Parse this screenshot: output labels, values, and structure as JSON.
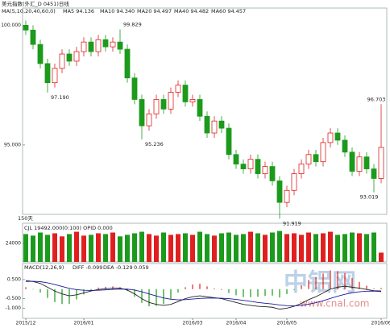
{
  "chart_data": [
    {
      "type": "candlestick",
      "title": "美元指数(外汇_D 0451)日线",
      "ma_title": "MA(5,10,20,40,60,0)",
      "legend": [
        {
          "label": "MA5 94.136",
          "color": "#000000"
        },
        {
          "label": "MA10 94.340",
          "color": "#1a1a9a"
        },
        {
          "label": "MA20 94.497",
          "color": "#c000c0"
        },
        {
          "label": "MA40 94.482",
          "color": "#008000"
        },
        {
          "label": "MA60 94.457",
          "color": "#808040"
        }
      ],
      "footer": "150天",
      "categories": [
        "2015/12",
        null,
        null,
        null,
        null,
        null,
        null,
        null,
        "2016/01",
        null,
        null,
        null,
        null,
        null,
        null,
        null,
        null,
        null,
        null,
        null,
        null,
        null,
        null,
        "2016/03",
        null,
        null,
        null,
        null,
        null,
        "2016/04",
        null,
        null,
        null,
        null,
        null,
        null,
        "2016/05",
        null,
        null,
        null,
        null,
        null,
        null,
        null,
        null,
        null,
        null,
        null,
        null,
        "2016/06"
      ],
      "open": [
        100.0,
        99.8,
        99.2,
        98.4,
        97.6,
        98.2,
        98.8,
        98.5,
        98.9,
        99.3,
        98.9,
        99.4,
        99.1,
        99.3,
        99.0,
        97.8,
        96.9,
        95.8,
        96.3,
        96.9,
        96.5,
        97.2,
        97.5,
        96.8,
        96.9,
        96.2,
        95.5,
        96.0,
        95.7,
        94.6,
        94.2,
        94.0,
        94.4,
        93.8,
        94.1,
        93.5,
        92.6,
        93.1,
        93.8,
        94.2,
        94.6,
        94.3,
        95.1,
        95.5,
        95.2,
        94.7,
        93.9,
        94.5,
        94.0,
        93.6
      ],
      "high": [
        100.2,
        100.0,
        99.4,
        98.6,
        98.4,
        99.0,
        99.0,
        99.1,
        99.5,
        99.5,
        99.6,
        99.6,
        99.5,
        99.829,
        99.2,
        98.0,
        97.1,
        96.5,
        97.1,
        97.1,
        97.4,
        97.7,
        97.7,
        97.1,
        97.1,
        96.4,
        96.2,
        96.2,
        95.9,
        94.8,
        94.4,
        94.6,
        94.6,
        94.3,
        94.3,
        93.7,
        93.3,
        94.0,
        94.4,
        94.8,
        94.8,
        95.3,
        95.7,
        95.7,
        95.4,
        94.9,
        94.7,
        94.7,
        94.2,
        96.703
      ],
      "low": [
        99.6,
        99.0,
        98.2,
        97.19,
        97.4,
        98.0,
        98.3,
        98.3,
        98.7,
        98.7,
        98.7,
        98.9,
        98.9,
        98.8,
        97.6,
        96.7,
        95.236,
        95.6,
        96.1,
        96.3,
        96.3,
        97.0,
        96.6,
        96.6,
        96.0,
        95.3,
        95.3,
        95.5,
        94.4,
        94.0,
        93.8,
        93.8,
        93.6,
        93.6,
        93.3,
        91.919,
        92.4,
        92.9,
        93.6,
        94.0,
        94.1,
        94.1,
        94.9,
        95.0,
        94.5,
        93.7,
        93.7,
        93.8,
        93.019,
        93.4
      ],
      "close": [
        99.8,
        99.2,
        98.4,
        97.6,
        98.2,
        98.8,
        98.5,
        98.9,
        99.3,
        98.9,
        99.4,
        99.1,
        99.3,
        99.0,
        97.8,
        96.9,
        95.8,
        96.3,
        96.9,
        96.5,
        97.2,
        97.5,
        96.8,
        96.9,
        96.2,
        95.5,
        96.0,
        95.7,
        94.6,
        94.2,
        94.0,
        94.4,
        93.8,
        94.1,
        93.5,
        92.6,
        93.1,
        93.8,
        94.2,
        94.6,
        94.3,
        95.1,
        95.5,
        95.2,
        94.7,
        93.9,
        94.5,
        94.0,
        93.6,
        94.9
      ],
      "annotations": [
        {
          "index": 13,
          "value": 99.829,
          "label": "99.829",
          "color": "#c03030"
        },
        {
          "index": 3,
          "value": 97.19,
          "label": "97.190",
          "color": "#208020"
        },
        {
          "index": 16,
          "value": 95.236,
          "label": "95.236",
          "color": "#208020"
        },
        {
          "index": 35,
          "value": 91.919,
          "label": "91.919",
          "color": "#208020"
        },
        {
          "index": 49,
          "value": 96.703,
          "label": "96.703",
          "color": "#c03030"
        },
        {
          "index": 48,
          "value": 93.019,
          "label": "93.019",
          "color": "#208020"
        }
      ],
      "up_color": "#e02020",
      "down_color": "#1c9a1c",
      "ylim": [
        92.1,
        100.72
      ],
      "yticks": [
        {
          "value": 100,
          "label": "100.000"
        },
        {
          "value": 95,
          "label": "95.000"
        }
      ]
    },
    {
      "type": "bar",
      "title": "CJL 19492.000(0:100)  OPID 0.000",
      "values": [
        36000,
        34000,
        38000,
        35000,
        37000,
        33000,
        36000,
        39000,
        34000,
        35000,
        37000,
        36000,
        38000,
        33000,
        35000,
        37000,
        39000,
        36000,
        34000,
        38000,
        35000,
        36000,
        37000,
        35000,
        39000,
        36000,
        34000,
        37000,
        38000,
        35000,
        36000,
        39000,
        37000,
        35000,
        38000,
        40000,
        36000,
        37000,
        35000,
        38000,
        36000,
        37000,
        39000,
        35000,
        36000,
        38000,
        37000,
        36000,
        38000,
        12000
      ],
      "ylim": [
        0,
        50000
      ],
      "yticks": [
        24000
      ]
    },
    {
      "type": "macd",
      "title": "MACD(12,26,9)",
      "readout": [
        "DIFF -0.099",
        "DEA -0.129",
        "0.059"
      ],
      "series": [
        {
          "name": "DIFF",
          "color": "#222222",
          "values": [
            0.45,
            0.4,
            0.3,
            0.1,
            -0.1,
            -0.25,
            -0.35,
            -0.3,
            -0.2,
            -0.1,
            -0.02,
            0.02,
            0.05,
            0.05,
            -0.05,
            -0.25,
            -0.5,
            -0.7,
            -0.8,
            -0.85,
            -0.8,
            -0.65,
            -0.5,
            -0.4,
            -0.35,
            -0.4,
            -0.45,
            -0.5,
            -0.6,
            -0.7,
            -0.8,
            -0.85,
            -0.9,
            -0.92,
            -0.95,
            -1.05,
            -1.0,
            -0.9,
            -0.75,
            -0.55,
            -0.4,
            -0.2,
            0.0,
            0.1,
            0.15,
            0.1,
            0.05,
            -0.02,
            -0.08,
            -0.099
          ]
        },
        {
          "name": "DEA",
          "color": "#1a1a9a",
          "values": [
            0.4,
            0.41,
            0.39,
            0.33,
            0.24,
            0.14,
            0.04,
            -0.03,
            -0.06,
            -0.07,
            -0.06,
            -0.04,
            -0.02,
            0.0,
            0.0,
            -0.05,
            -0.14,
            -0.25,
            -0.36,
            -0.46,
            -0.53,
            -0.56,
            -0.55,
            -0.52,
            -0.49,
            -0.47,
            -0.47,
            -0.48,
            -0.5,
            -0.54,
            -0.59,
            -0.64,
            -0.7,
            -0.74,
            -0.78,
            -0.83,
            -0.87,
            -0.88,
            -0.85,
            -0.79,
            -0.71,
            -0.61,
            -0.49,
            -0.37,
            -0.27,
            -0.19,
            -0.14,
            -0.11,
            -0.1,
            -0.129
          ]
        }
      ],
      "histogram": [
        0.1,
        -0.02,
        -0.18,
        -0.46,
        -0.68,
        -0.78,
        -0.78,
        -0.54,
        -0.28,
        -0.06,
        0.08,
        0.12,
        0.14,
        0.1,
        -0.1,
        -0.4,
        -0.72,
        -0.9,
        -0.88,
        -0.78,
        -0.54,
        -0.18,
        0.1,
        0.24,
        0.28,
        0.14,
        0.04,
        -0.04,
        -0.2,
        -0.32,
        -0.42,
        -0.42,
        -0.4,
        -0.36,
        -0.34,
        -0.44,
        -0.26,
        -0.04,
        0.2,
        0.48,
        0.62,
        0.82,
        0.98,
        0.94,
        0.84,
        0.58,
        0.38,
        0.18,
        0.04,
        0.059
      ],
      "ylim": [
        -1.53,
        1.34
      ],
      "yticks": [
        {
          "value": 0.5,
          "label": "0.500"
        },
        {
          "value": -0.5,
          "label": "-0.500"
        },
        {
          "value": -1,
          "label": "-1.000"
        }
      ]
    }
  ],
  "watermark": {
    "logo": "中铝网",
    "url": "www.cnal.com"
  }
}
